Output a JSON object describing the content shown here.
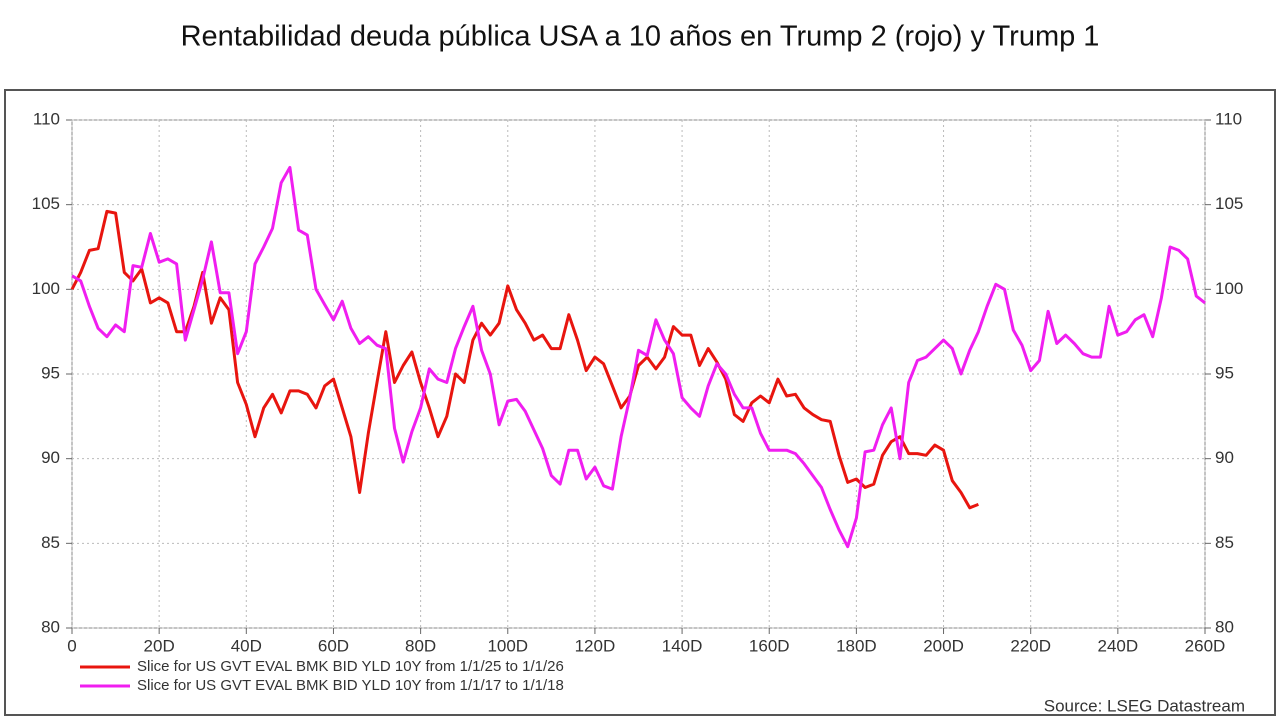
{
  "chart_data": {
    "type": "line",
    "title": "Rentabilidad deuda pública USA a 10 años en Trump 2 (rojo) y Trump 1",
    "source": "Source: LSEG Datastream",
    "grid": true,
    "legend": "bottom",
    "xlim": [
      0,
      260
    ],
    "xticks": [
      0,
      {
        "value": 20,
        "label": "20D"
      },
      {
        "value": 40,
        "label": "40D"
      },
      {
        "value": 60,
        "label": "60D"
      },
      {
        "value": 80,
        "label": "80D"
      },
      {
        "value": 100,
        "label": "100D"
      },
      {
        "value": 120,
        "label": "120D"
      },
      {
        "value": 140,
        "label": "140D"
      },
      {
        "value": 160,
        "label": "160D"
      },
      {
        "value": 180,
        "label": "180D"
      },
      {
        "value": 200,
        "label": "200D"
      },
      {
        "value": 220,
        "label": "220D"
      },
      {
        "value": 240,
        "label": "240D"
      },
      {
        "value": 260,
        "label": "260D"
      }
    ],
    "ylim": [
      80,
      110
    ],
    "yticks": [
      80,
      85,
      90,
      95,
      100,
      105,
      110
    ],
    "y2lim": [
      80,
      110
    ],
    "y2ticks": [
      80,
      85,
      90,
      95,
      100,
      105,
      110
    ],
    "x": [
      0,
      2,
      4,
      6,
      8,
      10,
      12,
      14,
      16,
      18,
      20,
      22,
      24,
      26,
      28,
      30,
      32,
      34,
      36,
      38,
      40,
      42,
      44,
      46,
      48,
      50,
      52,
      54,
      56,
      58,
      60,
      62,
      64,
      66,
      68,
      70,
      72,
      74,
      76,
      78,
      80,
      82,
      84,
      86,
      88,
      90,
      92,
      94,
      96,
      98,
      100,
      102,
      104,
      106,
      108,
      110,
      112,
      114,
      116,
      118,
      120,
      122,
      124,
      126,
      128,
      130,
      132,
      134,
      136,
      138,
      140,
      142,
      144,
      146,
      148,
      150,
      152,
      154,
      156,
      158,
      160,
      162,
      164,
      166,
      168,
      170,
      172,
      174,
      176,
      178,
      180,
      182,
      184,
      186,
      188,
      190,
      192,
      194,
      196,
      198,
      200,
      202,
      204,
      206,
      208,
      210,
      212,
      214,
      216,
      218,
      220,
      222,
      224,
      226,
      228,
      230,
      232,
      234,
      236,
      238,
      240,
      242,
      244,
      246,
      248,
      250,
      252,
      254,
      256,
      258,
      260
    ],
    "series": [
      {
        "name": "Slice for US GVT EVAL BMK BID YLD 10Y from 1/1/25 to 1/1/26",
        "color": "#e8150f",
        "values": [
          100,
          101,
          102.3,
          102.4,
          104.6,
          104.5,
          101,
          100.5,
          101.2,
          99.2,
          99.5,
          99.2,
          97.5,
          97.5,
          99,
          101,
          98,
          99.5,
          98.8,
          94.5,
          93.2,
          91.3,
          93,
          93.8,
          92.7,
          94,
          94,
          93.8,
          93,
          94.3,
          94.7,
          93,
          91.3,
          88,
          91.5,
          94.5,
          97.5,
          94.5,
          95.5,
          96.3,
          94.5,
          93,
          91.3,
          92.5,
          95,
          94.5,
          97,
          98,
          97.3,
          98,
          100.2,
          98.8,
          98,
          97,
          97.3,
          96.5,
          96.5,
          98.5,
          97,
          95.2,
          96,
          95.6,
          94.3,
          93,
          93.7,
          95.5,
          96,
          95.3,
          96,
          97.8,
          97.3,
          97.3,
          95.5,
          96.5,
          95.7,
          94.7,
          92.6,
          92.2,
          93.3,
          93.7,
          93.3,
          94.7,
          93.7,
          93.8,
          93,
          92.6,
          92.3,
          92.2,
          90.2,
          88.6,
          88.8,
          88.3,
          88.5,
          90.2,
          91,
          91.3,
          90.3,
          90.3,
          90.2,
          90.8,
          90.5,
          88.7,
          88,
          87.1,
          87.3,
          null,
          null,
          null,
          null,
          null,
          null,
          null,
          null,
          null,
          null,
          null,
          null,
          null,
          null,
          null,
          null,
          null,
          null,
          null,
          null,
          null,
          null,
          null,
          null,
          null,
          null
        ]
      },
      {
        "name": "Slice for US GVT EVAL BMK BID YLD 10Y from 1/1/17 to 1/1/18",
        "color": "#f01ef0",
        "values": [
          100.8,
          100.5,
          99,
          97.7,
          97.2,
          97.9,
          97.5,
          101.4,
          101.3,
          103.3,
          101.6,
          101.8,
          101.5,
          97,
          98.8,
          100.6,
          102.8,
          99.8,
          99.8,
          96.2,
          97.5,
          101.5,
          102.5,
          103.6,
          106.3,
          107.2,
          103.5,
          103.2,
          100,
          99.1,
          98.2,
          99.3,
          97.7,
          96.8,
          97.2,
          96.7,
          96.5,
          91.8,
          89.8,
          91.6,
          93,
          95.3,
          94.7,
          94.5,
          96.5,
          97.8,
          99,
          96.4,
          95,
          92,
          93.4,
          93.5,
          92.8,
          91.7,
          90.6,
          89,
          88.5,
          90.5,
          90.5,
          88.8,
          89.5,
          88.4,
          88.2,
          91.3,
          93.6,
          96.4,
          96.1,
          98.2,
          97,
          96.2,
          93.6,
          93,
          92.5,
          94.3,
          95.6,
          95,
          93.8,
          93,
          93,
          91.5,
          90.5,
          90.5,
          90.5,
          90.3,
          89.7,
          89,
          88.3,
          87,
          85.8,
          84.8,
          86.5,
          90.4,
          90.5,
          92,
          93,
          90,
          94.5,
          95.8,
          96,
          96.5,
          97,
          96.5,
          95,
          96.4,
          97.5,
          99,
          100.3,
          100,
          97.6,
          96.7,
          95.2,
          95.8,
          98.7,
          96.8,
          97.3,
          96.8,
          96.2,
          96,
          96,
          99,
          97.3,
          97.5,
          98.2,
          98.5,
          97.2,
          99.5,
          102.5,
          102.3,
          101.8,
          99.6,
          99.2
        ]
      }
    ]
  }
}
